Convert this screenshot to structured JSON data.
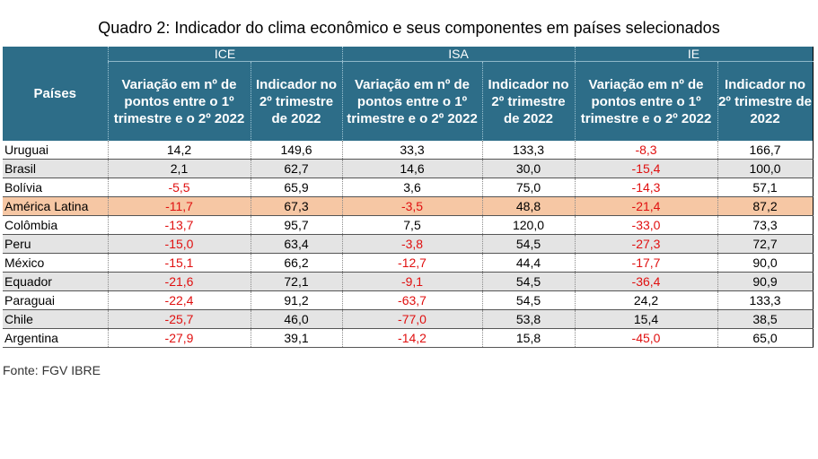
{
  "title": "Quadro 2: Indicador do clima econômico e seus componentes em países selecionados",
  "header": {
    "row_label": "Países",
    "groups": [
      "ICE",
      "ISA",
      "IE"
    ],
    "sub_variation": "Variação em nº de pontos entre o 1º trimestre e o 2º 2022",
    "sub_indicator": "Indicador no 2º trimestre de 2022"
  },
  "rows": [
    {
      "pais": "Uruguai",
      "ice_var": "14,2",
      "ice_ind": "149,6",
      "isa_var": "33,3",
      "isa_ind": "133,3",
      "ie_var": "-8,3",
      "ie_ind": "166,7"
    },
    {
      "pais": "Brasil",
      "ice_var": "2,1",
      "ice_ind": "62,7",
      "isa_var": "14,6",
      "isa_ind": "30,0",
      "ie_var": "-15,4",
      "ie_ind": "100,0"
    },
    {
      "pais": "Bolívia",
      "ice_var": "-5,5",
      "ice_ind": "65,9",
      "isa_var": "3,6",
      "isa_ind": "75,0",
      "ie_var": "-14,3",
      "ie_ind": "57,1"
    },
    {
      "pais": "América Latina",
      "ice_var": "-11,7",
      "ice_ind": "67,3",
      "isa_var": "-3,5",
      "isa_ind": "48,8",
      "ie_var": "-21,4",
      "ie_ind": "87,2"
    },
    {
      "pais": "Colômbia",
      "ice_var": "-13,7",
      "ice_ind": "95,7",
      "isa_var": "7,5",
      "isa_ind": "120,0",
      "ie_var": "-33,0",
      "ie_ind": "73,3"
    },
    {
      "pais": "Peru",
      "ice_var": "-15,0",
      "ice_ind": "63,4",
      "isa_var": "-3,8",
      "isa_ind": "54,5",
      "ie_var": "-27,3",
      "ie_ind": "72,7"
    },
    {
      "pais": "México",
      "ice_var": "-15,1",
      "ice_ind": "66,2",
      "isa_var": "-12,7",
      "isa_ind": "44,4",
      "ie_var": "-17,7",
      "ie_ind": "90,0"
    },
    {
      "pais": "Equador",
      "ice_var": "-21,6",
      "ice_ind": "72,1",
      "isa_var": "-9,1",
      "isa_ind": "54,5",
      "ie_var": "-36,4",
      "ie_ind": "90,9"
    },
    {
      "pais": "Paraguai",
      "ice_var": "-22,4",
      "ice_ind": "91,2",
      "isa_var": "-63,7",
      "isa_ind": "54,5",
      "ie_var": "24,2",
      "ie_ind": "133,3"
    },
    {
      "pais": "Chile",
      "ice_var": "-25,7",
      "ice_ind": "46,0",
      "isa_var": "-77,0",
      "isa_ind": "53,8",
      "ie_var": "15,4",
      "ie_ind": "38,5"
    },
    {
      "pais": "Argentina",
      "ice_var": "-27,9",
      "ice_ind": "39,1",
      "isa_var": "-14,2",
      "isa_ind": "15,8",
      "ie_var": "-45,0",
      "ie_ind": "65,0"
    }
  ],
  "highlight_row": "América Latina",
  "source": "Fonte: FGV IBRE",
  "colors": {
    "header_bg": "#2d6d88",
    "highlight_bg": "#f6c7a4",
    "negative_text": "#e01010",
    "stripe_bg": "#e4e4e4"
  }
}
